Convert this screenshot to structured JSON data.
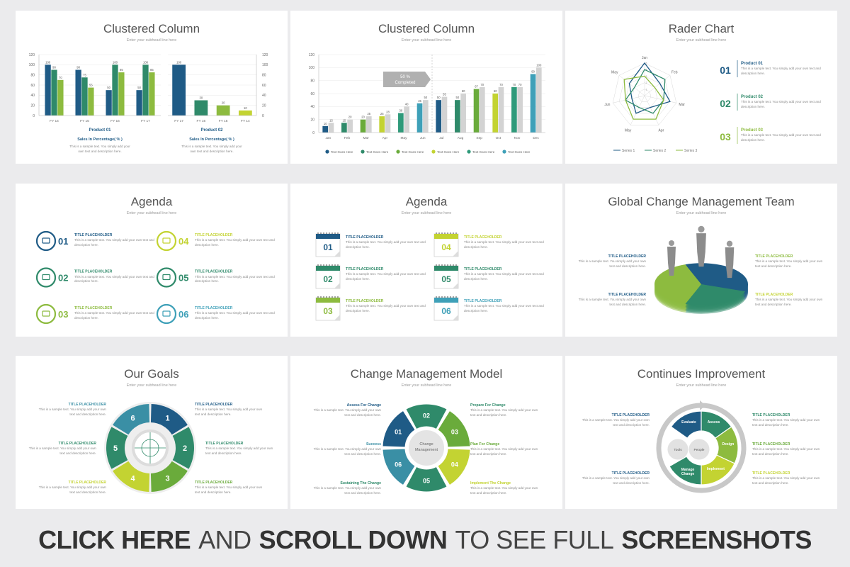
{
  "slides": [
    {
      "title": "Clustered Column",
      "subtitle": "Enter your subhead line here",
      "chart_data": [
        {
          "type": "bar",
          "categories": [
            "FY 14",
            "FY 15",
            "FY 16",
            "FY 17"
          ],
          "series": [
            {
              "color": "#1f5b86",
              "values": [
                100,
                90,
                50,
                50
              ]
            },
            {
              "color": "#2f8a6a",
              "values": [
                90,
                75,
                100,
                100
              ]
            },
            {
              "color": "#8dbb3f",
              "values": [
                70,
                55,
                85,
                85
              ]
            }
          ],
          "ylim": [
            0,
            120
          ],
          "yticks": [
            0,
            20,
            40,
            60,
            80,
            100,
            120
          ],
          "grid": true,
          "xlabel": "Product 01",
          "caption": "Sales In Percentage( % )",
          "text": "This is a sample text. You simply add your own text and description here."
        },
        {
          "type": "bar",
          "categories": [
            "FY 17",
            "FY 16",
            "FY 15",
            "FY 14"
          ],
          "series": [
            {
              "colors": [
                "#1f5b86",
                "#2f8a6a",
                "#8dbb3f",
                "#c3d332"
              ],
              "values": [
                100,
                30,
                20,
                10
              ]
            }
          ],
          "ylim": [
            0,
            120
          ],
          "yticks": [
            0,
            20,
            40,
            60,
            80,
            100,
            120
          ],
          "grid": true,
          "xlabel": "Product 02",
          "caption": "Sales In Percentage( % )",
          "text": "This is a sample text. You simply add your own text and description here."
        }
      ]
    },
    {
      "title": "Clustered Column",
      "subtitle": "Enter your subhead line here",
      "chart_data": {
        "type": "bar",
        "categories": [
          "Jan",
          "Feb",
          "Mar",
          "Apr",
          "May",
          "Jun",
          "Jul",
          "Aug",
          "Sep",
          "Oct",
          "Nov",
          "Dec"
        ],
        "series": [
          {
            "colors": [
              "#1f5b86",
              "#2f8a6a",
              "#6aab3b",
              "#c3d332",
              "#2f9a7a",
              "#3ea0b8",
              "#1f5b86",
              "#2f8a6a",
              "#6aab3b",
              "#c3d332",
              "#2f9a7a",
              "#3ea0b8"
            ],
            "values": [
              10,
              15,
              20,
              25,
              30,
              45,
              50,
              50,
              67,
              60,
              70,
              90
            ]
          },
          {
            "color": "#d3d3d3",
            "values": [
              15,
              20,
              25,
              28,
              40,
              50,
              55,
              60,
              70,
              70,
              70,
              100
            ]
          }
        ],
        "ylim": [
          0,
          120
        ],
        "yticks": [
          0,
          20,
          40,
          60,
          80,
          100,
          120
        ],
        "grid": true,
        "annotation": [
          "50 %",
          "Completed"
        ],
        "legend": [
          {
            "name": "Text Goes Here",
            "color": "#1f5b86"
          },
          {
            "name": "Text Goes Here",
            "color": "#2f8a6a"
          },
          {
            "name": "Text Goes Here",
            "color": "#6aab3b"
          },
          {
            "name": "Text Goes Here",
            "color": "#c3d332"
          },
          {
            "name": "Text Goes Here",
            "color": "#2f9a7a"
          },
          {
            "name": "Text Goes Here",
            "color": "#3ea0b8"
          }
        ]
      }
    },
    {
      "title": "Rader Chart",
      "subtitle": "Enter your subhead line here",
      "chart_data": {
        "type": "radar",
        "categories": [
          "Jan",
          "Feb",
          "Mar",
          "Apr",
          "May",
          "Jun",
          "May"
        ],
        "series": [
          {
            "name": "Series 1",
            "color": "#1f5b86",
            "values": [
              5,
              3,
              4,
              2,
              3,
              2,
              3
            ]
          },
          {
            "name": "Series 2",
            "color": "#2f8a6a",
            "values": [
              4,
              4,
              3,
              3,
              2,
              3,
              2
            ]
          },
          {
            "name": "Series 3",
            "color": "#8dbb3f",
            "values": [
              3,
              2,
              3,
              4,
              4,
              3,
              4
            ]
          }
        ],
        "rlim": [
          0,
          5
        ],
        "rticks": [
          1,
          2,
          3,
          4,
          5
        ]
      },
      "items": [
        {
          "number": "01",
          "title": "Product 01",
          "color": "#1f5b86",
          "text": "This is a sample text. You simply add your own text and description here."
        },
        {
          "number": "02",
          "title": "Product 02",
          "color": "#2f8a6a",
          "text": "This is a sample text. You simply add your own text and description here."
        },
        {
          "number": "03",
          "title": "Product 03",
          "color": "#8dbb3f",
          "text": "This is a sample text. You simply add your own text and description here."
        }
      ]
    },
    {
      "title": "Agenda",
      "subtitle": "Enter your subhead line here",
      "items": [
        {
          "number": "01",
          "title": "TITLE PLACEHOLDER",
          "color": "#1f5b86",
          "text": "This is a sample text. You simply add your own text and description here."
        },
        {
          "number": "02",
          "title": "TITLE PLACEHOLDER",
          "color": "#2f8a6a",
          "text": "This is a sample text. You simply add your own text and description here."
        },
        {
          "number": "03",
          "title": "TITLE PLACEHOLDER",
          "color": "#8dbb3f",
          "text": "This is a sample text. You simply add your own text and description here."
        },
        {
          "number": "04",
          "title": "TITLE PLACEHOLDER",
          "color": "#c3d332",
          "text": "This is a sample text. You simply add your own text and description here."
        },
        {
          "number": "05",
          "title": "TITLE PLACEHOLDER",
          "color": "#2f8a6a",
          "text": "This is a sample text. You simply add your own text and description here."
        },
        {
          "number": "06",
          "title": "TITLE PLACEHOLDER",
          "color": "#3ea0b8",
          "text": "This is a sample text. You simply add your own text and description here."
        }
      ]
    },
    {
      "title": "Agenda",
      "subtitle": "Enter your subhead line here",
      "items": [
        {
          "number": "01",
          "title": "TITLE PLACEHOLDER",
          "color": "#1f5b86",
          "text": "This is a sample text. You simply add your own text and description here."
        },
        {
          "number": "02",
          "title": "TITLE PLACEHOLDER",
          "color": "#2f8a6a",
          "text": "This is a sample text. You simply add your own text and description here."
        },
        {
          "number": "03",
          "title": "TITLE PLACEHOLDER",
          "color": "#8dbb3f",
          "text": "This is a sample text. You simply add your own text and description here."
        },
        {
          "number": "04",
          "title": "TITLE PLACEHOLDER",
          "color": "#c3d332",
          "text": "This is a sample text. You simply add your own text and description here."
        },
        {
          "number": "05",
          "title": "TITLE PLACEHOLDER",
          "color": "#2f8a6a",
          "text": "This is a sample text. You simply add your own text and description here."
        },
        {
          "number": "06",
          "title": "TITLE PLACEHOLDER",
          "color": "#3ea0b8",
          "text": "This is a sample text. You simply add your own text and description here."
        }
      ]
    },
    {
      "title": "Global Change Management Team",
      "subtitle": "Enter your subhead line here",
      "items": [
        {
          "title": "TITLE PLACEHOLDER",
          "color": "#1f5b86",
          "text": "This is a sample text. You simply add your own text and description here."
        },
        {
          "title": "TITLE PLACEHOLDER",
          "color": "#1f5b86",
          "text": "This is a sample text. You simply add your own text and description here."
        },
        {
          "title": "TITLE PLACEHOLDER",
          "color": "#8dbb3f",
          "text": "This is a sample text. You simply add your own text and description here."
        },
        {
          "title": "TITLE PLACEHOLDER",
          "color": "#c3d332",
          "text": "This is a sample text. You simply add your own text and description here."
        }
      ]
    },
    {
      "title": "Our Goals",
      "subtitle": "Enter your subhead line here",
      "segments": [
        "1",
        "2",
        "3",
        "4",
        "5",
        "6"
      ],
      "items": [
        {
          "title": "TITLE PLACEHOLDER",
          "color": "#1f5b86",
          "text": "This is a sample text. You simply add your own text and description here."
        },
        {
          "title": "TITLE PLACEHOLDER",
          "color": "#2f8a6a",
          "text": "This is a sample text. You simply add your own text and description here."
        },
        {
          "title": "TITLE PLACEHOLDER",
          "color": "#6aab3b",
          "text": "This is a sample text. You simply add your own text and description here."
        },
        {
          "title": "TITLE PLACEHOLDER",
          "color": "#3a8fa5",
          "text": "This is a sample text. You simply add your own text and description here."
        },
        {
          "title": "TITLE PLACEHOLDER",
          "color": "#2f8a6a",
          "text": "This is a sample text. You simply add your own text and description here."
        },
        {
          "title": "TITLE PLACEHOLDER",
          "color": "#c3d332",
          "text": "This is a sample text. You simply add your own text and description here."
        }
      ]
    },
    {
      "title": "Change Management Model",
      "subtitle": "Enter your subhead line here",
      "center": "Change Management",
      "segments": [
        "01",
        "02",
        "03",
        "04",
        "05",
        "06"
      ],
      "items": [
        {
          "title": "Assess For Change",
          "color": "#1f5b86",
          "text": "This is a sample text. You simply add your own text and description here."
        },
        {
          "title": "Prepare For Change",
          "color": "#2f8a6a",
          "text": "This is a sample text. You simply add your own text and description here."
        },
        {
          "title": "Success",
          "color": "#3a8fa5",
          "text": "This is a sample text. You simply add your own text and description here."
        },
        {
          "title": "Plan For Change",
          "color": "#6aab3b",
          "text": "This is a sample text. You simply add your own text and description here."
        },
        {
          "title": "Sustaining The Change",
          "color": "#2f8a6a",
          "text": "This is a sample text. You simply add your own text and description here."
        },
        {
          "title": "Implement The Change",
          "color": "#c3d332",
          "text": "This is a sample text. You simply add your own text and description here."
        }
      ]
    },
    {
      "title": "Continues Improvement",
      "subtitle": "Enter your subhead line here",
      "labels": [
        "Evaluate",
        "Assess",
        "Design",
        "Implement",
        "Manage Change",
        "Tools",
        "People"
      ],
      "items": [
        {
          "title": "TITLE PLACEHOLDER",
          "color": "#1f5b86",
          "text": "This is a sample text. You simply add your own text and description here."
        },
        {
          "title": "TITLE PLACEHOLDER",
          "color": "#2f8a6a",
          "text": "This is a sample text. You simply add your own text and description here."
        },
        {
          "title": "TITLE PLACEHOLDER",
          "color": "#6aab3b",
          "text": "This is a sample text. You simply add your own text and description here."
        },
        {
          "title": "TITLE PLACEHOLDER",
          "color": "#1f5b86",
          "text": "This is a sample text. You simply add your own text and description here."
        },
        {
          "title": "TITLE PLACEHOLDER",
          "color": "#c3d332",
          "text": "This is a sample text. You simply add your own text and description here."
        }
      ]
    }
  ],
  "banner": [
    {
      "text": "CLICK HERE",
      "bold": true
    },
    {
      "text": "AND",
      "bold": false
    },
    {
      "text": "SCROLL DOWN",
      "bold": true
    },
    {
      "text": "TO SEE FULL",
      "bold": false
    },
    {
      "text": "SCREENSHOTS",
      "bold": true
    }
  ]
}
